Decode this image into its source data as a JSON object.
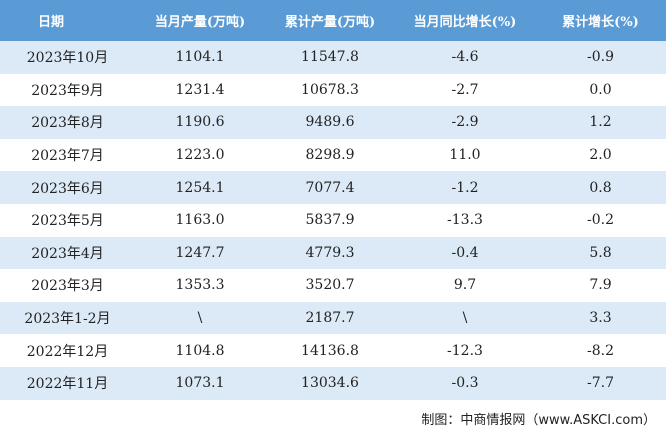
{
  "table": {
    "header": [
      "日期",
      "当月产量(万吨)",
      "累计产量(万吨)",
      "当月同比增长(%)",
      "累计增长(%)"
    ],
    "rows": [
      [
        "2023年10月",
        "1104.1",
        "11547.8",
        "-4.6",
        "-0.9"
      ],
      [
        "2023年9月",
        "1231.4",
        "10678.3",
        "-2.7",
        "0.0"
      ],
      [
        "2023年8月",
        "1190.6",
        "9489.6",
        "-2.9",
        "1.2"
      ],
      [
        "2023年7月",
        "1223.0",
        "8298.9",
        "11.0",
        "2.0"
      ],
      [
        "2023年6月",
        "1254.1",
        "7077.4",
        "-1.2",
        "0.8"
      ],
      [
        "2023年5月",
        "1163.0",
        "5837.9",
        "-13.3",
        "-0.2"
      ],
      [
        "2023年4月",
        "1247.7",
        "4779.3",
        "-0.4",
        "5.8"
      ],
      [
        "2023年3月",
        "1353.3",
        "3520.7",
        "9.7",
        "7.9"
      ],
      [
        "2023年1-2月",
        "\\",
        "2187.7",
        "\\",
        "3.3"
      ],
      [
        "2022年12月",
        "1104.8",
        "14136.8",
        "-12.3",
        "-8.2"
      ],
      [
        "2022年11月",
        "1073.1",
        "13034.6",
        "-0.3",
        "-7.7"
      ]
    ]
  },
  "footer": "制图：中商情报网（www.ASKCI.com）"
}
